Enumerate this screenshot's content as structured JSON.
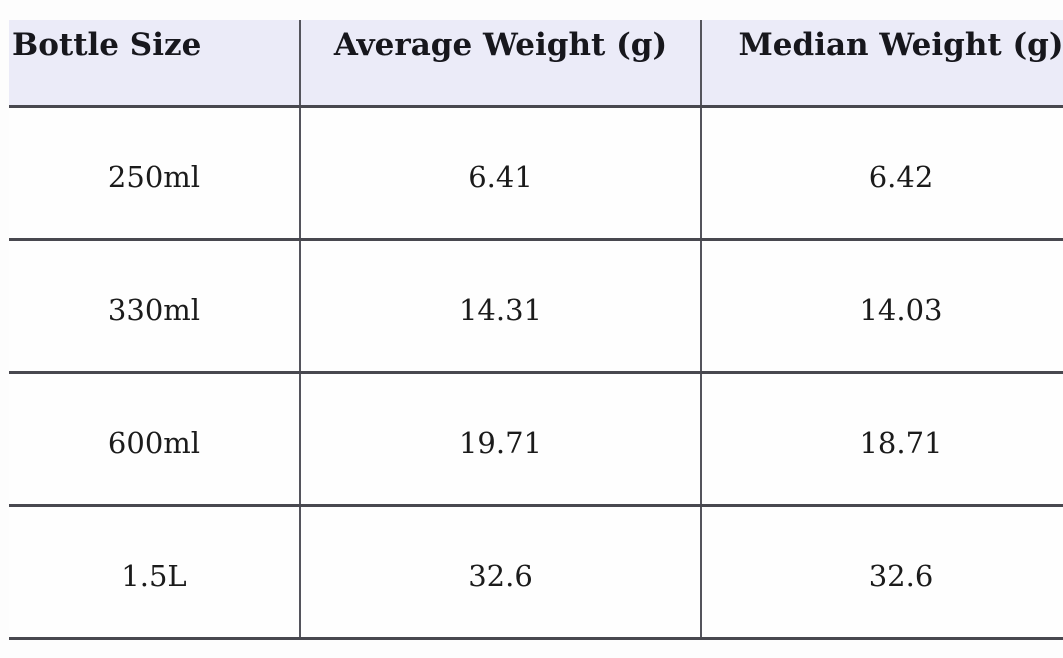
{
  "table": {
    "columns": [
      {
        "label": "Bottle Size"
      },
      {
        "label": "Average Weight (g)"
      },
      {
        "label": "Median Weight (g)"
      }
    ],
    "rows": [
      {
        "bottle_size": "250ml",
        "average_weight_g": "6.41",
        "median_weight_g": "6.42"
      },
      {
        "bottle_size": "330ml",
        "average_weight_g": "14.31",
        "median_weight_g": "14.03"
      },
      {
        "bottle_size": "600ml",
        "average_weight_g": "19.71",
        "median_weight_g": "18.71"
      },
      {
        "bottle_size": "1.5L",
        "average_weight_g": "32.6",
        "median_weight_g": "32.6"
      }
    ]
  },
  "colors": {
    "header_background": "#ebebf8",
    "horizontal_border": "#48484f",
    "vertical_border": "#54545c",
    "header_text": "#17171d",
    "body_text": "#1b1b1b",
    "page_background": "#fdfdfd"
  },
  "chart_data": {
    "type": "table",
    "title": "",
    "columns": [
      "Bottle Size",
      "Average Weight (g)",
      "Median Weight (g)"
    ],
    "rows": [
      [
        "250ml",
        6.41,
        6.42
      ],
      [
        "330ml",
        14.31,
        14.03
      ],
      [
        "600ml",
        19.71,
        18.71
      ],
      [
        "1.5L",
        32.6,
        32.6
      ]
    ]
  }
}
